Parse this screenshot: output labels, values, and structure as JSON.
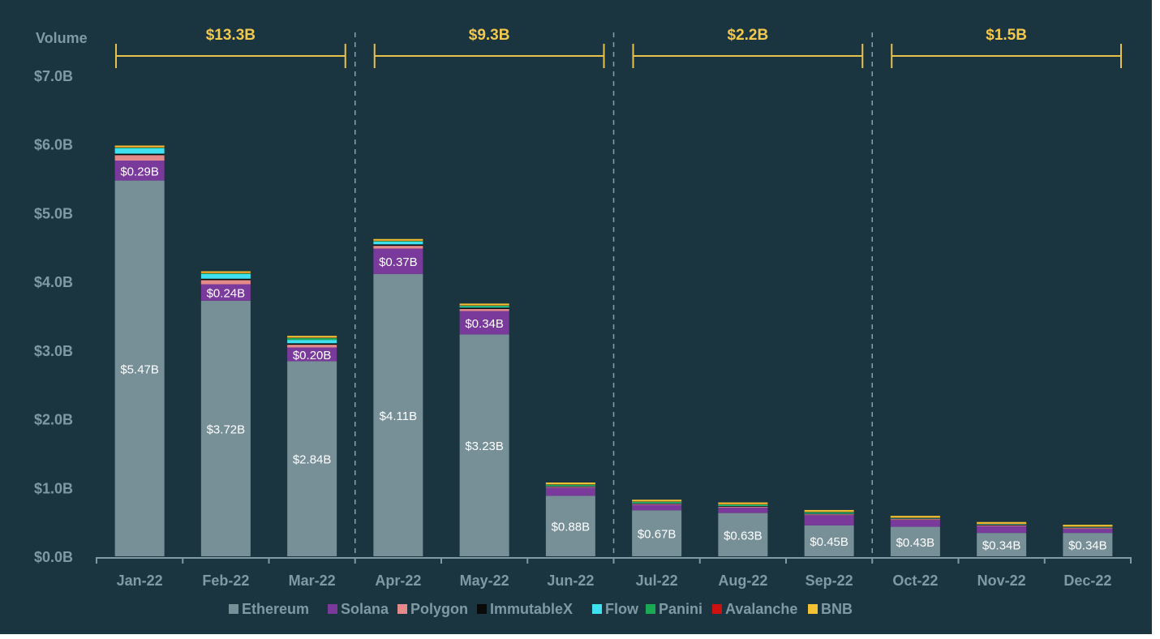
{
  "chart_data": {
    "type": "bar",
    "stacked": true,
    "ylabel": "Volume",
    "ylim": [
      0,
      7.0
    ],
    "y_ticks": [
      "$0.0B",
      "$1.0B",
      "$2.0B",
      "$3.0B",
      "$4.0B",
      "$5.0B",
      "$6.0B",
      "$7.0B"
    ],
    "categories": [
      "Jan-22",
      "Feb-22",
      "Mar-22",
      "Apr-22",
      "May-22",
      "Jun-22",
      "Jul-22",
      "Aug-22",
      "Sep-22",
      "Oct-22",
      "Nov-22",
      "Dec-22"
    ],
    "series": [
      {
        "name": "Ethereum",
        "color": "#778f96",
        "values": [
          5.47,
          3.72,
          2.84,
          4.11,
          3.23,
          0.88,
          0.67,
          0.63,
          0.45,
          0.43,
          0.34,
          0.34
        ],
        "labels": [
          "$5.47B",
          "$3.72B",
          "$2.84B",
          "$4.11B",
          "$3.23B",
          "$0.88B",
          "$0.67B",
          "$0.63B",
          "$0.45B",
          "$0.43B",
          "$0.34B",
          "$0.34B"
        ]
      },
      {
        "name": "Solana",
        "color": "#7a3a9c",
        "values": [
          0.29,
          0.24,
          0.2,
          0.37,
          0.34,
          0.12,
          0.08,
          0.08,
          0.15,
          0.1,
          0.1,
          0.06
        ],
        "labels": [
          "$0.29B",
          "$0.24B",
          "$0.20B",
          "$0.37B",
          "$0.34B",
          "",
          "",
          "",
          "",
          "",
          "",
          ""
        ]
      },
      {
        "name": "Polygon",
        "color": "#e58a8a",
        "values": [
          0.08,
          0.06,
          0.04,
          0.04,
          0.03,
          0.01,
          0.01,
          0.01,
          0.01,
          0.01,
          0.01,
          0.01
        ]
      },
      {
        "name": "ImmutableX",
        "color": "#0a0a0a",
        "values": [
          0.02,
          0.02,
          0.02,
          0.02,
          0.02,
          0.01,
          0.01,
          0.01,
          0.01,
          0.01,
          0.01,
          0.01
        ]
      },
      {
        "name": "Flow",
        "color": "#3fe0f0",
        "values": [
          0.08,
          0.07,
          0.05,
          0.04,
          0.01,
          0.005,
          0.005,
          0.005,
          0.005,
          0.005,
          0.005,
          0.005
        ]
      },
      {
        "name": "Panini",
        "color": "#1aaa55",
        "values": [
          0.01,
          0.01,
          0.03,
          0.01,
          0.02,
          0.02,
          0.02,
          0.02,
          0.02,
          0.005,
          0.005,
          0.005
        ]
      },
      {
        "name": "Avalanche",
        "color": "#cc1111",
        "values": [
          0.005,
          0.005,
          0.005,
          0.005,
          0.005,
          0.005,
          0.005,
          0.005,
          0.005,
          0.005,
          0.005,
          0.005
        ]
      },
      {
        "name": "BNB",
        "color": "#f2c232",
        "values": [
          0.005,
          0.005,
          0.005,
          0.005,
          0.005,
          0.005,
          0.005,
          0.005,
          0.005,
          0.01,
          0.01,
          0.01
        ]
      }
    ],
    "quarter_totals": [
      {
        "label": "$13.3B",
        "from": 0,
        "to": 2
      },
      {
        "label": "$9.3B",
        "from": 3,
        "to": 5
      },
      {
        "label": "$2.2B",
        "from": 6,
        "to": 8
      },
      {
        "label": "$1.5B",
        "from": 9,
        "to": 11
      }
    ],
    "legend_position": "bottom",
    "grid": false
  }
}
